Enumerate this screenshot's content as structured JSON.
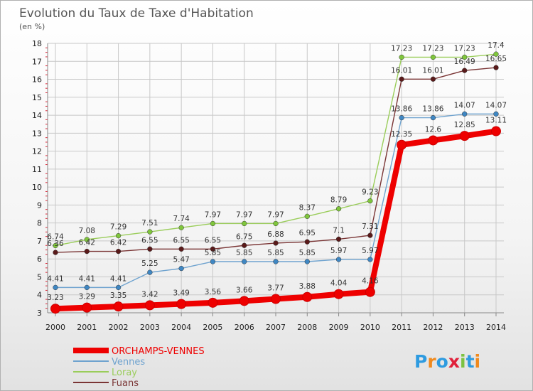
{
  "chart_data": {
    "type": "line",
    "title": "Evolution du Taux de Taxe d'Habitation",
    "subtitle": "(en %)",
    "xlabel": "",
    "ylabel": "",
    "ylim": [
      3,
      18
    ],
    "yticks": [
      "3",
      "4",
      "5",
      "6",
      "7",
      "8",
      "9",
      "10",
      "11",
      "12",
      "13",
      "14",
      "15",
      "16",
      "17",
      "18"
    ],
    "grid": true,
    "legend": "bottom-left",
    "x": [
      "2000",
      "2001",
      "2002",
      "2003",
      "2004",
      "2005",
      "2006",
      "2007",
      "2008",
      "2009",
      "2010",
      "2011",
      "2012",
      "2013",
      "2014"
    ],
    "series": [
      {
        "name": "Loray",
        "color": "#9acd5a",
        "marker": "#7fc63c",
        "values": [
          6.74,
          7.08,
          7.29,
          7.51,
          7.74,
          7.97,
          7.97,
          7.97,
          8.37,
          8.79,
          9.23,
          17.23,
          17.23,
          17.23,
          17.4
        ],
        "labels": [
          "6.74",
          "7.08",
          "7.29",
          "7.51",
          "7.74",
          "7.97",
          "7.97",
          "7.97",
          "8.37",
          "8.79",
          "9.23",
          "17.23",
          "17.23",
          "17.23",
          "17.4"
        ]
      },
      {
        "name": "Fuans",
        "color": "#7a3535",
        "marker": "#5a1a1a",
        "values": [
          6.36,
          6.42,
          6.42,
          6.55,
          6.55,
          6.55,
          6.75,
          6.88,
          6.95,
          7.1,
          7.31,
          16.01,
          16.01,
          16.49,
          16.65
        ],
        "labels": [
          "6.36",
          "6.42",
          "6.42",
          "6.55",
          "6.55",
          "6.55",
          "6.75",
          "6.88",
          "6.95",
          "7.1",
          "7.31",
          "16.01",
          "16.01",
          "16.49",
          "16.65"
        ]
      },
      {
        "name": "Vennes",
        "color": "#6fa3cf",
        "marker": "#3f87c3",
        "values": [
          4.41,
          4.41,
          4.41,
          5.25,
          5.47,
          5.85,
          5.85,
          5.85,
          5.85,
          5.97,
          5.97,
          13.86,
          13.86,
          14.07,
          14.07
        ],
        "labels": [
          "4.41",
          "4.41",
          "4.41",
          "5.25",
          "5.47",
          "5.85",
          "5.85",
          "5.85",
          "5.85",
          "5.97",
          "5.97",
          "13.86",
          "13.86",
          "14.07",
          "14.07"
        ]
      },
      {
        "name": "ORCHAMPS-VENNES",
        "color": "#ee0000",
        "marker": "#ee0000",
        "values": [
          3.23,
          3.29,
          3.35,
          3.42,
          3.49,
          3.56,
          3.66,
          3.77,
          3.88,
          4.04,
          4.16,
          12.35,
          12.6,
          12.85,
          13.11
        ],
        "labels": [
          "3.23",
          "3.29",
          "3.35",
          "3.42",
          "3.49",
          "3.56",
          "3.66",
          "3.77",
          "3.88",
          "4.04",
          "4.16",
          "12.35",
          "12.6",
          "12.85",
          "13.11"
        ]
      }
    ],
    "legend_order": [
      "ORCHAMPS-VENNES",
      "Vennes",
      "Loray",
      "Fuans"
    ]
  },
  "brand": {
    "logo_text": "Proxiti",
    "letter_colors": [
      "#2e9be0",
      "#f08a1e",
      "#2e9be0",
      "#e0203a",
      "#7cc242",
      "#2e9be0",
      "#f08a1e"
    ]
  }
}
